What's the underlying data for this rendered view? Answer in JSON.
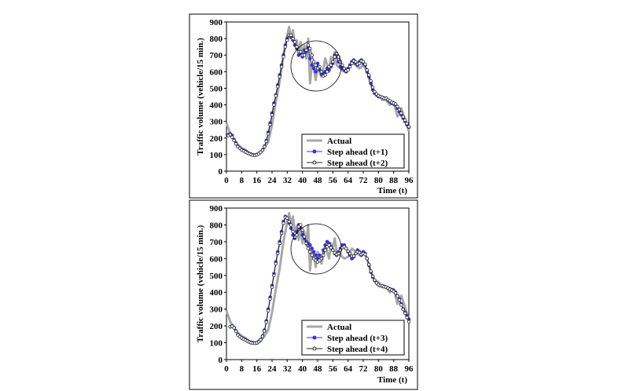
{
  "chart_data": [
    {
      "type": "line",
      "xlabel": "Time (t)",
      "ylabel": "Traffic volume (vehicle/15 min.)",
      "xlim": [
        0,
        96
      ],
      "ylim": [
        0,
        900
      ],
      "xticks": [
        "0",
        "8",
        "16",
        "24",
        "32",
        "40",
        "48",
        "56",
        "64",
        "72",
        "80",
        "88",
        "96"
      ],
      "yticks": [
        "0",
        "100",
        "200",
        "300",
        "400",
        "500",
        "600",
        "700",
        "800",
        "900"
      ],
      "legend": [
        "Actual",
        "Step ahead (t+1)",
        "Step ahead (t+2)"
      ],
      "legend_position": "bottom-right",
      "annotation": "circle",
      "series": [
        {
          "name": "Actual",
          "color": "#a8a8a8",
          "x": [
            0,
            2,
            4,
            6,
            8,
            10,
            12,
            14,
            16,
            18,
            20,
            22,
            24,
            26,
            28,
            30,
            32,
            33,
            34,
            35,
            36,
            37,
            38,
            39,
            40,
            41,
            42,
            43,
            44,
            45,
            46,
            47,
            48,
            49,
            50,
            51,
            52,
            53,
            54,
            55,
            56,
            57,
            58,
            60,
            62,
            64,
            66,
            68,
            70,
            72,
            74,
            76,
            78,
            80,
            82,
            84,
            86,
            88,
            90,
            92,
            94,
            96
          ],
          "y": [
            290,
            225,
            190,
            160,
            140,
            128,
            110,
            100,
            95,
            110,
            140,
            175,
            280,
            420,
            540,
            700,
            820,
            870,
            800,
            850,
            760,
            790,
            710,
            780,
            690,
            760,
            680,
            800,
            530,
            650,
            620,
            550,
            640,
            600,
            570,
            620,
            680,
            640,
            600,
            690,
            660,
            720,
            640,
            620,
            600,
            610,
            660,
            640,
            620,
            640,
            600,
            520,
            470,
            460,
            430,
            430,
            400,
            420,
            330,
            380,
            310,
            240
          ]
        },
        {
          "name": "Step ahead (t+1)",
          "color": "#3333dd",
          "x": [
            1,
            2,
            3,
            4,
            5,
            6,
            7,
            8,
            9,
            10,
            11,
            12,
            13,
            14,
            15,
            16,
            17,
            18,
            19,
            20,
            21,
            22,
            23,
            24,
            25,
            26,
            27,
            28,
            29,
            30,
            31,
            32,
            33,
            34,
            35,
            36,
            37,
            38,
            39,
            40,
            41,
            42,
            43,
            44,
            45,
            46,
            47,
            48,
            49,
            50,
            51,
            52,
            53,
            54,
            55,
            56,
            57,
            58,
            59,
            60,
            61,
            62,
            63,
            64,
            65,
            66,
            67,
            68,
            69,
            70,
            71,
            72,
            73,
            74,
            75,
            76,
            77,
            78,
            79,
            80,
            81,
            82,
            83,
            84,
            85,
            86,
            87,
            88,
            89,
            90,
            91,
            92,
            93,
            94,
            95,
            96
          ],
          "y": [
            220,
            225,
            215,
            190,
            170,
            150,
            140,
            130,
            125,
            120,
            112,
            106,
            102,
            98,
            97,
            100,
            106,
            115,
            128,
            150,
            185,
            235,
            290,
            350,
            410,
            460,
            520,
            580,
            640,
            700,
            760,
            800,
            820,
            810,
            790,
            760,
            740,
            700,
            710,
            690,
            730,
            720,
            750,
            680,
            640,
            620,
            600,
            650,
            610,
            585,
            590,
            600,
            620,
            610,
            630,
            650,
            700,
            690,
            660,
            630,
            620,
            610,
            600,
            620,
            640,
            660,
            670,
            650,
            640,
            660,
            670,
            650,
            640,
            600,
            570,
            530,
            490,
            470,
            460,
            450,
            450,
            445,
            440,
            440,
            430,
            420,
            410,
            405,
            400,
            380,
            360,
            340,
            320,
            300,
            280,
            265
          ]
        },
        {
          "name": "Step ahead (t+2)",
          "color": "#222222",
          "x": [
            1,
            2,
            3,
            4,
            5,
            6,
            7,
            8,
            9,
            10,
            11,
            12,
            13,
            14,
            15,
            16,
            17,
            18,
            19,
            20,
            21,
            22,
            23,
            24,
            25,
            26,
            27,
            28,
            29,
            30,
            31,
            32,
            33,
            34,
            35,
            36,
            37,
            38,
            39,
            40,
            41,
            42,
            43,
            44,
            45,
            46,
            47,
            48,
            49,
            50,
            51,
            52,
            53,
            54,
            55,
            56,
            57,
            58,
            59,
            60,
            61,
            62,
            63,
            64,
            65,
            66,
            67,
            68,
            69,
            70,
            71,
            72,
            73,
            74,
            75,
            76,
            77,
            78,
            79,
            80,
            81,
            82,
            83,
            84,
            85,
            86,
            87,
            88,
            89,
            90,
            91,
            92,
            93,
            94,
            95,
            96
          ],
          "y": [
            215,
            220,
            205,
            185,
            165,
            148,
            138,
            128,
            122,
            116,
            110,
            104,
            100,
            96,
            96,
            99,
            105,
            114,
            126,
            148,
            180,
            225,
            280,
            340,
            400,
            455,
            510,
            570,
            630,
            690,
            750,
            790,
            820,
            820,
            800,
            780,
            750,
            720,
            720,
            700,
            700,
            730,
            760,
            740,
            700,
            660,
            640,
            620,
            630,
            600,
            575,
            580,
            600,
            630,
            640,
            660,
            690,
            710,
            690,
            660,
            640,
            620,
            605,
            610,
            630,
            650,
            665,
            660,
            645,
            650,
            665,
            660,
            645,
            610,
            580,
            545,
            505,
            480,
            465,
            455,
            450,
            445,
            440,
            440,
            432,
            425,
            415,
            410,
            405,
            390,
            372,
            350,
            328,
            308,
            288,
            268
          ]
        }
      ]
    },
    {
      "type": "line",
      "xlabel": "Time (t)",
      "ylabel": "Traffic volume (vehicle/15 min.)",
      "xlim": [
        0,
        96
      ],
      "ylim": [
        0,
        900
      ],
      "xticks": [
        "0",
        "8",
        "16",
        "24",
        "32",
        "40",
        "48",
        "56",
        "64",
        "72",
        "80",
        "88",
        "96"
      ],
      "yticks": [
        "0",
        "100",
        "200",
        "300",
        "400",
        "500",
        "600",
        "700",
        "800",
        "900"
      ],
      "legend": [
        "Actual",
        "Step ahead (t+3)",
        "Step ahead (t+4)"
      ],
      "legend_position": "bottom-right",
      "annotation": "circle",
      "series": [
        {
          "name": "Actual",
          "color": "#a8a8a8",
          "x": [
            0,
            2,
            4,
            6,
            8,
            10,
            12,
            14,
            16,
            18,
            20,
            22,
            24,
            26,
            28,
            30,
            32,
            33,
            34,
            35,
            36,
            37,
            38,
            39,
            40,
            41,
            42,
            43,
            44,
            45,
            46,
            47,
            48,
            49,
            50,
            51,
            52,
            53,
            54,
            55,
            56,
            57,
            58,
            60,
            62,
            64,
            66,
            68,
            70,
            72,
            74,
            76,
            78,
            80,
            82,
            84,
            86,
            88,
            90,
            92,
            94,
            96
          ],
          "y": [
            290,
            225,
            190,
            160,
            140,
            128,
            110,
            100,
            95,
            110,
            140,
            175,
            280,
            420,
            540,
            700,
            820,
            870,
            800,
            850,
            760,
            790,
            710,
            780,
            690,
            760,
            680,
            800,
            530,
            650,
            620,
            550,
            640,
            600,
            570,
            620,
            680,
            640,
            600,
            690,
            660,
            720,
            640,
            620,
            600,
            610,
            660,
            640,
            620,
            640,
            600,
            520,
            470,
            460,
            430,
            430,
            400,
            420,
            330,
            380,
            310,
            240
          ]
        },
        {
          "name": "Step ahead (t+3)",
          "color": "#3333dd",
          "x": [
            2,
            3,
            4,
            5,
            6,
            7,
            8,
            9,
            10,
            11,
            12,
            13,
            14,
            15,
            16,
            17,
            18,
            19,
            20,
            21,
            22,
            23,
            24,
            25,
            26,
            27,
            28,
            29,
            30,
            31,
            32,
            33,
            34,
            35,
            36,
            37,
            38,
            39,
            40,
            41,
            42,
            43,
            44,
            45,
            46,
            47,
            48,
            49,
            50,
            51,
            52,
            53,
            54,
            55,
            56,
            57,
            58,
            59,
            60,
            61,
            62,
            63,
            64,
            65,
            66,
            67,
            68,
            69,
            70,
            71,
            72,
            73,
            74,
            75,
            76,
            77,
            78,
            79,
            80,
            81,
            82,
            83,
            84,
            85,
            86,
            87,
            88,
            89,
            90,
            91,
            92,
            93,
            94,
            95,
            96
          ],
          "y": [
            195,
            200,
            190,
            170,
            148,
            138,
            130,
            124,
            118,
            112,
            106,
            102,
            100,
            98,
            100,
            108,
            120,
            140,
            175,
            230,
            300,
            370,
            440,
            510,
            580,
            640,
            700,
            760,
            820,
            850,
            840,
            810,
            780,
            740,
            720,
            760,
            800,
            780,
            740,
            720,
            700,
            690,
            680,
            660,
            640,
            620,
            600,
            620,
            600,
            650,
            680,
            700,
            690,
            670,
            650,
            630,
            620,
            640,
            660,
            680,
            680,
            660,
            640,
            620,
            600,
            610,
            630,
            650,
            640,
            620,
            640,
            630,
            600,
            560,
            520,
            490,
            470,
            455,
            445,
            440,
            438,
            435,
            430,
            425,
            420,
            415,
            410,
            400,
            380,
            360,
            330,
            300,
            280,
            260,
            240
          ]
        },
        {
          "name": "Step ahead (t+4)",
          "color": "#222222",
          "x": [
            2,
            3,
            4,
            5,
            6,
            7,
            8,
            9,
            10,
            11,
            12,
            13,
            14,
            15,
            16,
            17,
            18,
            19,
            20,
            21,
            22,
            23,
            24,
            25,
            26,
            27,
            28,
            29,
            30,
            31,
            32,
            33,
            34,
            35,
            36,
            37,
            38,
            39,
            40,
            41,
            42,
            43,
            44,
            45,
            46,
            47,
            48,
            49,
            50,
            51,
            52,
            53,
            54,
            55,
            56,
            57,
            58,
            59,
            60,
            61,
            62,
            63,
            64,
            65,
            66,
            67,
            68,
            69,
            70,
            71,
            72,
            73,
            74,
            75,
            76,
            77,
            78,
            79,
            80,
            81,
            82,
            83,
            84,
            85,
            86,
            87,
            88,
            89,
            90,
            91,
            92,
            93,
            94,
            95,
            96
          ],
          "y": [
            195,
            198,
            188,
            168,
            146,
            136,
            128,
            122,
            116,
            110,
            104,
            100,
            98,
            97,
            99,
            106,
            118,
            138,
            170,
            222,
            290,
            360,
            430,
            500,
            570,
            630,
            690,
            750,
            810,
            845,
            840,
            820,
            800,
            760,
            730,
            740,
            790,
            800,
            770,
            730,
            690,
            660,
            640,
            620,
            600,
            590,
            580,
            590,
            600,
            620,
            650,
            670,
            680,
            665,
            650,
            635,
            625,
            630,
            650,
            665,
            670,
            660,
            645,
            630,
            615,
            615,
            630,
            640,
            635,
            625,
            630,
            625,
            600,
            565,
            525,
            495,
            472,
            455,
            445,
            440,
            437,
            433,
            430,
            425,
            418,
            412,
            405,
            395,
            378,
            355,
            325,
            298,
            275,
            250,
            225
          ]
        }
      ]
    }
  ]
}
